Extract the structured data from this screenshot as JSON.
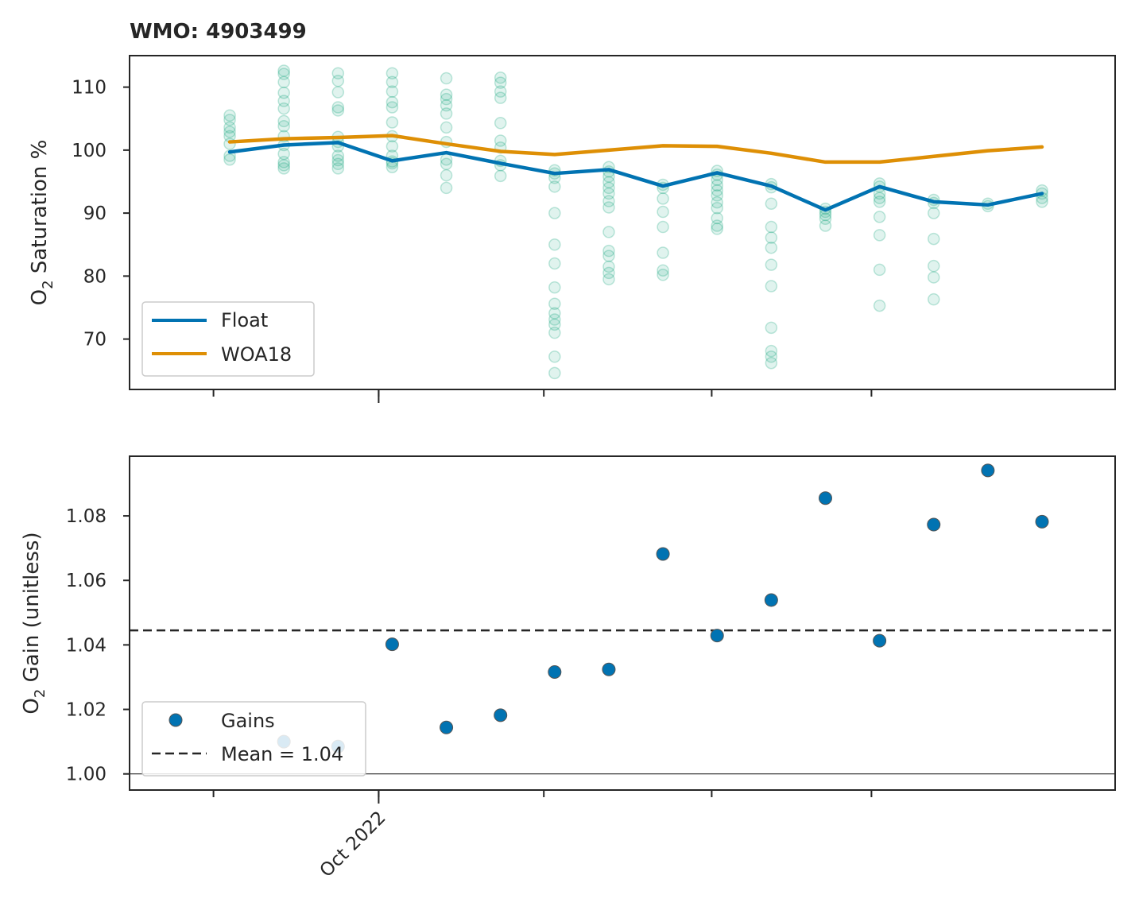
{
  "chart_data": [
    {
      "type": "line",
      "title": "WMO: 4903499",
      "ylabel_main": "O",
      "ylabel_sub": "2",
      "ylabel_rest": " Saturation %",
      "ylim": [
        62,
        115
      ],
      "yticks": [
        70,
        80,
        90,
        100,
        110
      ],
      "x_dates": [
        "2022-08-07",
        "2022-08-27",
        "2022-09-16",
        "2022-10-06",
        "2022-10-26",
        "2022-11-15",
        "2022-12-05",
        "2022-12-25",
        "2023-01-14",
        "2023-02-03",
        "2023-02-23",
        "2023-03-15",
        "2023-04-04",
        "2023-04-24",
        "2023-05-14",
        "2023-06-03"
      ],
      "series": [
        {
          "name": "Float",
          "color": "#0173b2",
          "values": [
            99.7,
            100.8,
            101.2,
            98.3,
            99.6,
            97.9,
            96.3,
            96.9,
            94.3,
            96.4,
            94.3,
            90.5,
            94.2,
            91.8,
            91.3,
            93.1
          ]
        },
        {
          "name": "WOA18",
          "color": "#de8f05",
          "values": [
            101.3,
            101.8,
            102.0,
            102.3,
            101.0,
            99.8,
            99.3,
            100.0,
            100.7,
            100.6,
            99.5,
            98.1,
            98.1,
            99.0,
            99.9,
            100.5
          ]
        }
      ],
      "scatter": {
        "color": "#029e73",
        "profiles": [
          [
            105.5,
            104.8,
            103.6,
            102.9,
            102.2,
            101.0,
            99.1,
            98.5
          ],
          [
            112.6,
            112.1,
            110.8,
            109.1,
            107.8,
            106.6,
            104.6,
            103.8,
            102.2,
            100.8,
            99.4,
            98.1,
            97.6,
            97.1
          ],
          [
            112.2,
            111.0,
            109.2,
            106.8,
            106.3,
            102.1,
            101.3,
            100.6,
            99.1,
            98.4,
            97.8,
            97.1
          ],
          [
            112.2,
            110.8,
            109.3,
            107.6,
            106.8,
            104.4,
            102.2,
            100.6,
            99.1,
            98.2,
            97.9,
            97.3
          ],
          [
            111.4,
            108.8,
            108.1,
            107.1,
            105.8,
            103.6,
            101.3,
            98.5,
            97.8,
            96.0,
            94.0
          ],
          [
            111.5,
            110.7,
            109.3,
            108.3,
            104.3,
            101.5,
            100.4,
            98.3,
            97.6,
            95.9
          ],
          [
            96.8,
            96.3,
            95.6,
            94.2,
            90.0,
            85.0,
            82.0,
            78.2,
            75.6,
            74.1,
            73.1,
            72.3,
            71.0,
            67.2,
            64.6
          ],
          [
            97.3,
            96.6,
            95.8,
            94.9,
            94.0,
            93.1,
            91.9,
            90.9,
            87.0,
            84.0,
            83.2,
            81.5,
            80.5,
            79.5
          ],
          [
            94.5,
            94.0,
            92.3,
            90.2,
            87.8,
            83.7,
            80.9,
            80.2
          ],
          [
            96.7,
            96.1,
            95.3,
            94.4,
            93.6,
            92.8,
            91.7,
            90.8,
            89.2,
            88.0,
            87.5
          ],
          [
            94.6,
            94.1,
            91.5,
            87.8,
            86.1,
            84.5,
            81.8,
            78.4,
            71.8,
            68.1,
            67.2,
            66.2
          ],
          [
            90.7,
            90.2,
            89.7,
            89.1,
            88.0
          ],
          [
            94.7,
            94.2,
            93.1,
            92.4,
            91.8,
            89.4,
            86.5,
            81.0,
            75.3
          ],
          [
            92.1,
            91.6,
            90.0,
            85.9,
            81.6,
            79.8,
            76.3
          ],
          [
            91.5,
            91.1
          ],
          [
            93.6,
            93.1,
            92.4,
            91.8
          ]
        ]
      },
      "legend": {
        "position": "lower left",
        "entries": [
          "Float",
          "WOA18"
        ]
      }
    },
    {
      "type": "scatter",
      "ylabel_main": "O",
      "ylabel_sub": "2",
      "ylabel_rest": " Gain (unitless)",
      "ylim": [
        0.995,
        1.0985
      ],
      "yticks": [
        "1.00",
        "1.02",
        "1.04",
        "1.06",
        "1.08"
      ],
      "xtick_label": "Oct 2022",
      "x_dates": [
        "2022-08-07",
        "2022-08-27",
        "2022-09-16",
        "2022-10-06",
        "2022-10-26",
        "2022-11-15",
        "2022-12-05",
        "2022-12-25",
        "2023-01-14",
        "2023-02-03",
        "2023-02-23",
        "2023-03-15",
        "2023-04-04",
        "2023-04-24",
        "2023-05-14",
        "2023-06-03"
      ],
      "series": [
        {
          "name": "Gains",
          "color": "#0173b2",
          "values": [
            null,
            1.01,
            1.0085,
            1.0402,
            1.0144,
            1.0182,
            1.0316,
            1.0324,
            1.0682,
            1.0429,
            1.0539,
            1.0855,
            1.0413,
            1.0773,
            1.0941,
            1.0782
          ]
        }
      ],
      "mean": {
        "value": 1.0445,
        "label": "Mean = 1.04",
        "color": "#262626"
      },
      "baseline": 1.0,
      "legend": {
        "position": "lower left",
        "entries": [
          "Gains",
          "Mean = 1.04"
        ]
      }
    }
  ]
}
